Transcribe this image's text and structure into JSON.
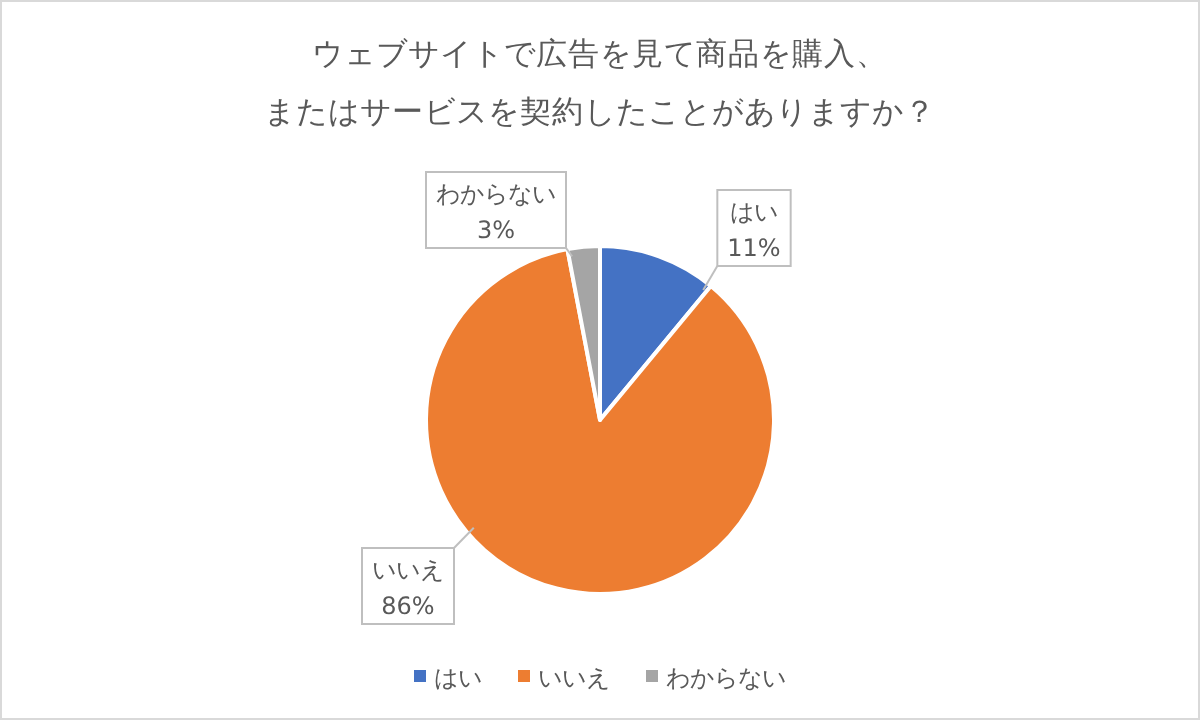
{
  "chart_data": {
    "type": "pie",
    "title": "ウェブサイトで広告を見て商品を購入、またはサービスを契約したことがありますか？",
    "categories": [
      "はい",
      "いいえ",
      "わからない"
    ],
    "values": [
      11,
      86,
      3
    ],
    "value_labels": [
      "11%",
      "86%",
      "3%"
    ],
    "colors": [
      "#4472c4",
      "#ed7d31",
      "#a5a5a5"
    ],
    "data_labels": true,
    "legend": "bottom"
  }
}
